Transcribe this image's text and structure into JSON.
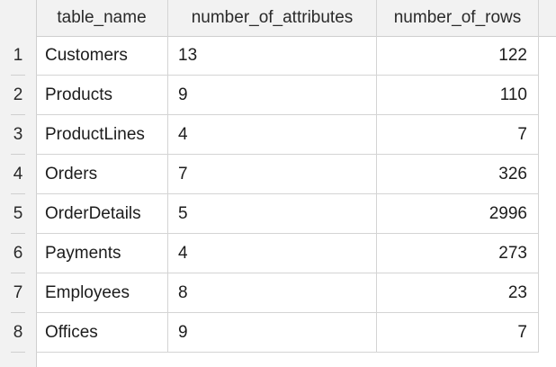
{
  "table": {
    "columns": [
      "table_name",
      "number_of_attributes",
      "number_of_rows"
    ],
    "rows": [
      {
        "num": "1",
        "table_name": "Customers",
        "number_of_attributes": "13",
        "number_of_rows": "122"
      },
      {
        "num": "2",
        "table_name": "Products",
        "number_of_attributes": "9",
        "number_of_rows": "110"
      },
      {
        "num": "3",
        "table_name": "ProductLines",
        "number_of_attributes": "4",
        "number_of_rows": "7"
      },
      {
        "num": "4",
        "table_name": "Orders",
        "number_of_attributes": "7",
        "number_of_rows": "326"
      },
      {
        "num": "5",
        "table_name": "OrderDetails",
        "number_of_attributes": "5",
        "number_of_rows": "2996"
      },
      {
        "num": "6",
        "table_name": "Payments",
        "number_of_attributes": "4",
        "number_of_rows": "273"
      },
      {
        "num": "7",
        "table_name": "Employees",
        "number_of_attributes": "8",
        "number_of_rows": "23"
      },
      {
        "num": "8",
        "table_name": "Offices",
        "number_of_attributes": "9",
        "number_of_rows": "7"
      }
    ]
  }
}
